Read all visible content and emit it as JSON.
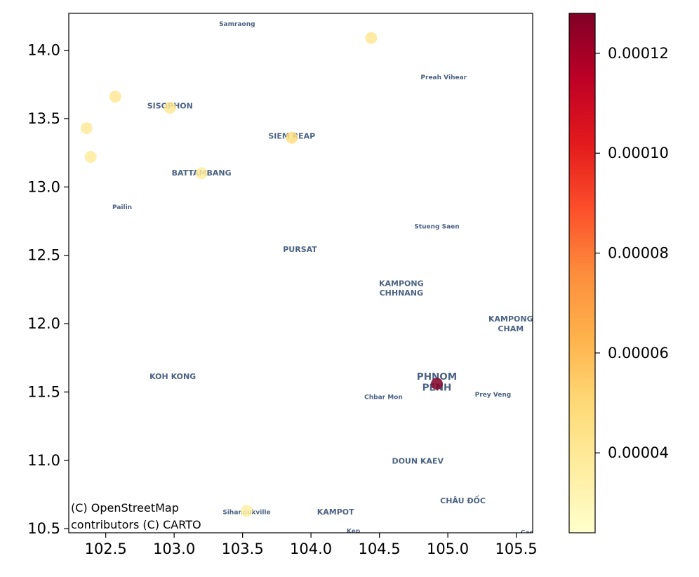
{
  "map": {
    "lon_range": [
      102.23,
      105.62
    ],
    "lat_range": [
      10.47,
      14.27
    ],
    "x_ticks": [
      {
        "v": 102.5,
        "label": "102.5"
      },
      {
        "v": 103.0,
        "label": "103.0"
      },
      {
        "v": 103.5,
        "label": "103.5"
      },
      {
        "v": 104.0,
        "label": "104.0"
      },
      {
        "v": 104.5,
        "label": "104.5"
      },
      {
        "v": 105.0,
        "label": "105.0"
      },
      {
        "v": 105.5,
        "label": "105.5"
      }
    ],
    "y_ticks": [
      {
        "v": 14.0,
        "label": "14.0"
      },
      {
        "v": 13.5,
        "label": "13.5"
      },
      {
        "v": 13.0,
        "label": "13.0"
      },
      {
        "v": 12.5,
        "label": "12.5"
      },
      {
        "v": 12.0,
        "label": "12.0"
      },
      {
        "v": 11.5,
        "label": "11.5"
      },
      {
        "v": 11.0,
        "label": "11.0"
      },
      {
        "v": 10.5,
        "label": "10.5"
      }
    ],
    "places": [
      {
        "name": "Samraong",
        "lon": 103.46,
        "lat": 14.19,
        "size": "s"
      },
      {
        "name": "Preah Vihear",
        "lon": 104.97,
        "lat": 13.8,
        "size": "s"
      },
      {
        "name": "SISOPHON",
        "lon": 102.97,
        "lat": 13.59,
        "size": "m"
      },
      {
        "name": "SIEM REAP",
        "lon": 103.86,
        "lat": 13.37,
        "size": "m"
      },
      {
        "name": "BATTAMBANG",
        "lon": 103.2,
        "lat": 13.1,
        "size": "m"
      },
      {
        "name": "Pailin",
        "lon": 102.62,
        "lat": 12.85,
        "size": "s"
      },
      {
        "name": "Stueng Saen",
        "lon": 104.92,
        "lat": 12.71,
        "size": "s"
      },
      {
        "name": "PURSAT",
        "lon": 103.92,
        "lat": 12.54,
        "size": "m"
      },
      {
        "name": "KAMPONG",
        "lon": 104.66,
        "lat": 12.29,
        "size": "m"
      },
      {
        "name": "CHHNANG",
        "lon": 104.66,
        "lat": 12.22,
        "size": "m"
      },
      {
        "name": "KAMPONG",
        "lon": 105.46,
        "lat": 12.03,
        "size": "m"
      },
      {
        "name": "CHAM",
        "lon": 105.46,
        "lat": 11.96,
        "size": "m"
      },
      {
        "name": "KOH KONG",
        "lon": 102.99,
        "lat": 11.61,
        "size": "m"
      },
      {
        "name": "PHNOM",
        "lon": 104.92,
        "lat": 11.61,
        "size": "l"
      },
      {
        "name": "PENH",
        "lon": 104.92,
        "lat": 11.53,
        "size": "l"
      },
      {
        "name": "Chbar Mon",
        "lon": 104.53,
        "lat": 11.46,
        "size": "s"
      },
      {
        "name": "Prey Veng",
        "lon": 105.33,
        "lat": 11.48,
        "size": "s"
      },
      {
        "name": "DOUN KAEV",
        "lon": 104.78,
        "lat": 10.99,
        "size": "m"
      },
      {
        "name": "CHÂU ĐỐC",
        "lon": 105.11,
        "lat": 10.7,
        "size": "m"
      },
      {
        "name": "Sihanoukville",
        "lon": 103.53,
        "lat": 10.62,
        "size": "s"
      },
      {
        "name": "KAMPOT",
        "lon": 104.18,
        "lat": 10.62,
        "size": "m"
      },
      {
        "name": "Kep",
        "lon": 104.31,
        "lat": 10.48,
        "size": "s"
      },
      {
        "name": "Cao",
        "lon": 105.58,
        "lat": 10.47,
        "size": "s"
      }
    ],
    "points": [
      {
        "lon": 104.44,
        "lat": 14.09,
        "value": 4e-05
      },
      {
        "lon": 102.57,
        "lat": 13.66,
        "value": 4e-05
      },
      {
        "lon": 102.97,
        "lat": 13.58,
        "value": 4.1e-05
      },
      {
        "lon": 102.36,
        "lat": 13.43,
        "value": 3.9e-05
      },
      {
        "lon": 103.86,
        "lat": 13.36,
        "value": 4.6e-05
      },
      {
        "lon": 102.39,
        "lat": 13.22,
        "value": 3.8e-05
      },
      {
        "lon": 103.2,
        "lat": 13.1,
        "value": 3.7e-05
      },
      {
        "lon": 104.92,
        "lat": 11.56,
        "value": 0.000128
      },
      {
        "lon": 103.53,
        "lat": 10.63,
        "value": 3.6e-05
      }
    ],
    "attribution_line1": "(C) OpenStreetMap",
    "attribution_line2": "contributors (C) CARTO"
  },
  "colorbar": {
    "min": 2.4e-05,
    "max": 0.000128,
    "cmap": "YlOrRd",
    "stops": [
      "#ffffcc",
      "#ffeda0",
      "#fed976",
      "#feb24c",
      "#fd8d3c",
      "#fc4e2a",
      "#e31a1c",
      "#bd0026",
      "#800026"
    ],
    "ticks": [
      {
        "v": 4e-05,
        "label": "0.00004"
      },
      {
        "v": 6e-05,
        "label": "0.00006"
      },
      {
        "v": 8e-05,
        "label": "0.00008"
      },
      {
        "v": 0.0001,
        "label": "0.00010"
      },
      {
        "v": 0.00012,
        "label": "0.00012"
      }
    ]
  }
}
